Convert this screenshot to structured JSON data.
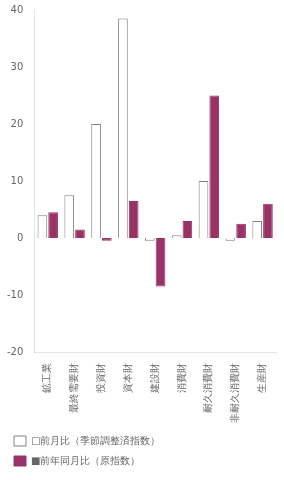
{
  "chart_data": {
    "type": "bar",
    "categories": [
      "鉱工業",
      "最終需要財",
      "投資財",
      "資本財",
      "建設財",
      "消費財",
      "耐久消費財",
      "非耐久消費財",
      "生産財"
    ],
    "series": [
      {
        "name": "□前月比（季節調整済指数）",
        "color": "#ffffff",
        "values": [
          4.0,
          7.5,
          20.0,
          38.5,
          -0.5,
          0.5,
          10.0,
          -0.5,
          3.0
        ]
      },
      {
        "name": "■前年同月比（原指数）",
        "color": "#993366",
        "values": [
          4.5,
          1.5,
          -0.5,
          6.5,
          -8.5,
          3.0,
          25.0,
          2.5,
          6.0
        ]
      }
    ],
    "ylim": [
      -20,
      40
    ],
    "yticks": [
      -20,
      -10,
      0,
      10,
      20,
      30,
      40
    ],
    "grid": false,
    "legend": "lower left"
  }
}
